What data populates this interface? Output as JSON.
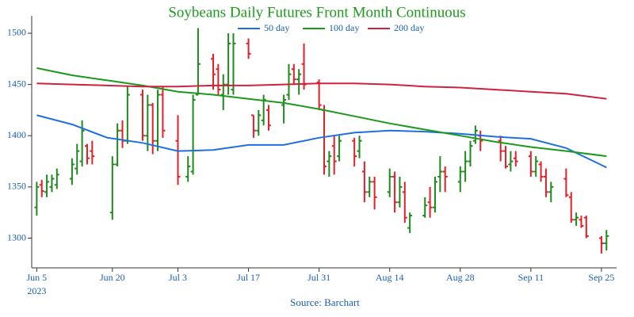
{
  "chart_data": {
    "type": "ohlc",
    "title": "Soybeans Daily Futures Front Month Continuous",
    "source": "Source: Barchart",
    "title_color": "#1e9a1e",
    "up_color": "#1e8a1e",
    "down_color": "#e41f2a",
    "x": [
      "2023-06-05",
      "2023-06-06",
      "2023-06-07",
      "2023-06-08",
      "2023-06-09",
      "2023-06-12",
      "2023-06-13",
      "2023-06-14",
      "2023-06-15",
      "2023-06-16",
      "2023-06-20",
      "2023-06-21",
      "2023-06-22",
      "2023-06-23",
      "2023-06-26",
      "2023-06-27",
      "2023-06-28",
      "2023-06-29",
      "2023-06-30",
      "2023-07-03",
      "2023-07-05",
      "2023-07-06",
      "2023-07-07",
      "2023-07-10",
      "2023-07-11",
      "2023-07-12",
      "2023-07-13",
      "2023-07-14",
      "2023-07-17",
      "2023-07-18",
      "2023-07-19",
      "2023-07-20",
      "2023-07-21",
      "2023-07-24",
      "2023-07-25",
      "2023-07-26",
      "2023-07-27",
      "2023-07-28",
      "2023-07-31",
      "2023-08-01",
      "2023-08-02",
      "2023-08-03",
      "2023-08-04",
      "2023-08-07",
      "2023-08-08",
      "2023-08-09",
      "2023-08-10",
      "2023-08-11",
      "2023-08-14",
      "2023-08-15",
      "2023-08-16",
      "2023-08-17",
      "2023-08-18",
      "2023-08-21",
      "2023-08-22",
      "2023-08-23",
      "2023-08-24",
      "2023-08-25",
      "2023-08-28",
      "2023-08-29",
      "2023-08-30",
      "2023-08-31",
      "2023-09-01",
      "2023-09-05",
      "2023-09-06",
      "2023-09-07",
      "2023-09-08",
      "2023-09-11",
      "2023-09-12",
      "2023-09-13",
      "2023-09-14",
      "2023-09-15",
      "2023-09-18",
      "2023-09-19",
      "2023-09-20",
      "2023-09-21",
      "2023-09-22",
      "2023-09-25",
      "2023-09-26"
    ],
    "open": [
      1330,
      1352,
      1345,
      1350,
      1352,
      1358,
      1368,
      1375,
      1390,
      1385,
      1325,
      1372,
      1405,
      1395,
      1440,
      1400,
      1430,
      1395,
      1440,
      1395,
      1360,
      1365,
      1440,
      1475,
      1465,
      1440,
      1450,
      1445,
      1490,
      1420,
      1405,
      1415,
      1425,
      1430,
      1440,
      1465,
      1455,
      1470,
      1452,
      1425,
      1375,
      1390,
      1380,
      1395,
      1385,
      1365,
      1345,
      1355,
      1345,
      1360,
      1335,
      1345,
      1310,
      1322,
      1335,
      1330,
      1360,
      1365,
      1355,
      1365,
      1375,
      1395,
      1400,
      1395,
      1385,
      1372,
      1378,
      1380,
      1365,
      1372,
      1360,
      1345,
      1358,
      1340,
      1318,
      1318,
      1320,
      1300,
      1295
    ],
    "high": [
      1355,
      1357,
      1362,
      1362,
      1368,
      1378,
      1392,
      1415,
      1392,
      1395,
      1380,
      1412,
      1415,
      1448,
      1445,
      1440,
      1432,
      1445,
      1448,
      1420,
      1380,
      1440,
      1505,
      1480,
      1470,
      1460,
      1500,
      1500,
      1495,
      1420,
      1425,
      1440,
      1430,
      1440,
      1470,
      1470,
      1465,
      1490,
      1455,
      1430,
      1385,
      1400,
      1400,
      1398,
      1400,
      1375,
      1360,
      1360,
      1368,
      1365,
      1360,
      1355,
      1325,
      1340,
      1350,
      1360,
      1380,
      1370,
      1370,
      1385,
      1395,
      1410,
      1405,
      1400,
      1390,
      1385,
      1385,
      1385,
      1380,
      1375,
      1368,
      1355,
      1368,
      1345,
      1325,
      1322,
      1322,
      1302,
      1308
    ],
    "low": [
      1322,
      1340,
      1340,
      1345,
      1348,
      1352,
      1362,
      1370,
      1372,
      1372,
      1318,
      1370,
      1388,
      1392,
      1395,
      1385,
      1382,
      1385,
      1398,
      1352,
      1355,
      1362,
      1440,
      1445,
      1440,
      1425,
      1440,
      1440,
      1475,
      1398,
      1400,
      1410,
      1405,
      1412,
      1435,
      1450,
      1440,
      1445,
      1425,
      1362,
      1360,
      1362,
      1375,
      1370,
      1378,
      1335,
      1340,
      1328,
      1340,
      1325,
      1330,
      1315,
      1305,
      1320,
      1320,
      1325,
      1345,
      1345,
      1345,
      1355,
      1370,
      1392,
      1385,
      1375,
      1368,
      1365,
      1370,
      1360,
      1360,
      1355,
      1340,
      1335,
      1340,
      1315,
      1312,
      1310,
      1300,
      1285,
      1288
    ],
    "close": [
      1350,
      1346,
      1355,
      1358,
      1362,
      1372,
      1385,
      1405,
      1378,
      1380,
      1372,
      1405,
      1395,
      1440,
      1400,
      1430,
      1395,
      1440,
      1405,
      1360,
      1370,
      1435,
      1470,
      1460,
      1445,
      1450,
      1490,
      1490,
      1480,
      1405,
      1420,
      1435,
      1410,
      1435,
      1460,
      1455,
      1460,
      1450,
      1430,
      1370,
      1380,
      1375,
      1395,
      1380,
      1395,
      1345,
      1355,
      1340,
      1360,
      1335,
      1350,
      1320,
      1322,
      1332,
      1330,
      1355,
      1365,
      1360,
      1365,
      1375,
      1390,
      1405,
      1395,
      1385,
      1370,
      1375,
      1375,
      1365,
      1375,
      1360,
      1345,
      1350,
      1342,
      1318,
      1320,
      1312,
      1302,
      1295,
      1302
    ],
    "series": [
      {
        "name": "50 day",
        "color": "#1f6fe0",
        "x": [
          "2023-06-05",
          "2023-06-12",
          "2023-06-19",
          "2023-06-26",
          "2023-07-03",
          "2023-07-10",
          "2023-07-17",
          "2023-07-24",
          "2023-07-31",
          "2023-08-07",
          "2023-08-14",
          "2023-08-21",
          "2023-08-28",
          "2023-09-04",
          "2023-09-11",
          "2023-09-18",
          "2023-09-26"
        ],
        "values": [
          1420,
          1411,
          1398,
          1393,
          1385,
          1386,
          1391,
          1391,
          1398,
          1403,
          1405,
          1404,
          1402,
          1399,
          1397,
          1388,
          1369
        ]
      },
      {
        "name": "100 day",
        "color": "#1a9a1a",
        "x": [
          "2023-06-05",
          "2023-06-12",
          "2023-06-19",
          "2023-06-26",
          "2023-07-03",
          "2023-07-10",
          "2023-07-17",
          "2023-07-24",
          "2023-07-31",
          "2023-08-07",
          "2023-08-14",
          "2023-08-21",
          "2023-08-28",
          "2023-09-04",
          "2023-09-11",
          "2023-09-18",
          "2023-09-26"
        ],
        "values": [
          1466,
          1459,
          1454,
          1449,
          1443,
          1440,
          1436,
          1432,
          1426,
          1419,
          1412,
          1406,
          1400,
          1394,
          1389,
          1385,
          1380
        ]
      },
      {
        "name": "200 day",
        "color": "#d0213f",
        "x": [
          "2023-06-05",
          "2023-06-12",
          "2023-06-19",
          "2023-06-26",
          "2023-07-03",
          "2023-07-10",
          "2023-07-17",
          "2023-07-24",
          "2023-07-31",
          "2023-08-07",
          "2023-08-14",
          "2023-08-21",
          "2023-08-28",
          "2023-09-04",
          "2023-09-11",
          "2023-09-18",
          "2023-09-26"
        ],
        "values": [
          1451,
          1450,
          1449,
          1448,
          1448,
          1449,
          1449,
          1450,
          1451,
          1451,
          1450,
          1448,
          1447,
          1445,
          1443,
          1441,
          1436
        ]
      }
    ],
    "xlim": [
      "2023-06-04",
      "2023-09-28"
    ],
    "xticks": [
      {
        "value": "2023-06-05",
        "label": "Jun 5"
      },
      {
        "value": "2023-06-20",
        "label": "Jun 20"
      },
      {
        "value": "2023-07-03",
        "label": "Jul 3"
      },
      {
        "value": "2023-07-17",
        "label": "Jul 17"
      },
      {
        "value": "2023-07-31",
        "label": "Jul 31"
      },
      {
        "value": "2023-08-14",
        "label": "Aug 14"
      },
      {
        "value": "2023-08-28",
        "label": "Aug 28"
      },
      {
        "value": "2023-09-11",
        "label": "Sep 11"
      },
      {
        "value": "2023-09-25",
        "label": "Sep 25"
      }
    ],
    "x_year": "2023",
    "ylim": [
      1271,
      1517
    ],
    "yticks": [
      1300,
      1350,
      1400,
      1450,
      1500
    ],
    "grid": false,
    "legend": "top"
  }
}
